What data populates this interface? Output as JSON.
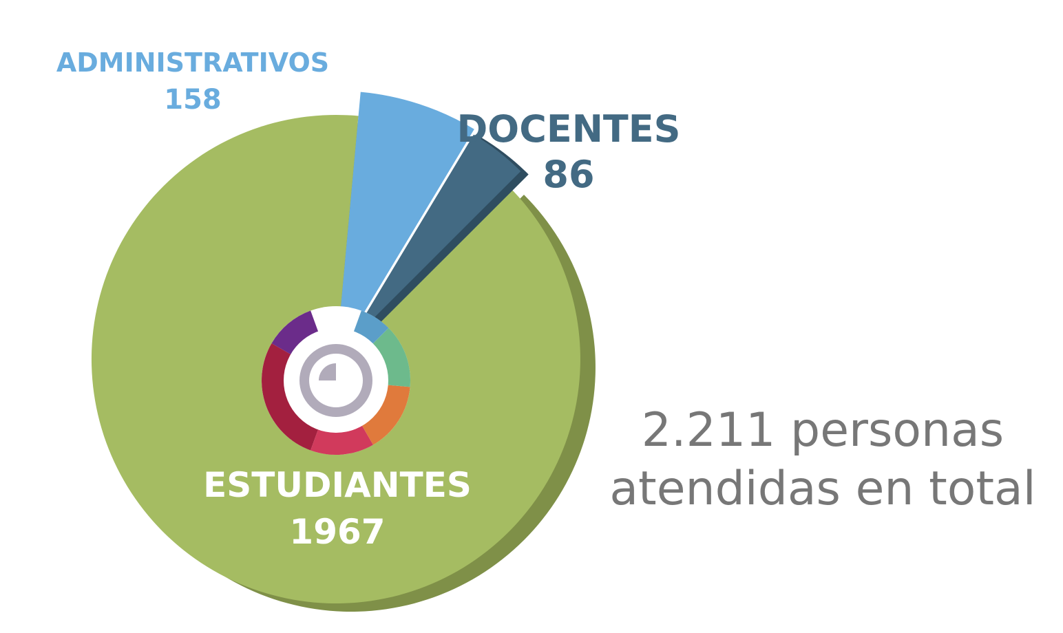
{
  "colors": {
    "estudiantes": "#A5BC62",
    "estudiantes_side": "#7F9048",
    "administrativos": "#69ACDE",
    "docentes": "#436A83",
    "docentes_side": "#2F4D60",
    "total_text": "#777777",
    "logo_ring": [
      "#6B2C8A",
      "#A3203F",
      "#D13A5C",
      "#E07A3C",
      "#6DBA8C",
      "#5B9EC9"
    ],
    "logo_gray": "#B1ABBA"
  },
  "chart_data": {
    "type": "pie",
    "categories": [
      "ESTUDIANTES",
      "ADMINISTRATIVOS",
      "DOCENTES"
    ],
    "values": [
      1967,
      158,
      86
    ],
    "value_labels": [
      "1967",
      "158",
      "86"
    ],
    "exploded": [
      "ADMINISTRATIVOS",
      "DOCENTES"
    ],
    "legend": "none"
  },
  "total": {
    "line1": "2.211 personas",
    "line2": "atendidas en total"
  },
  "center_logo_icon": "institution-ring-logo-icon"
}
